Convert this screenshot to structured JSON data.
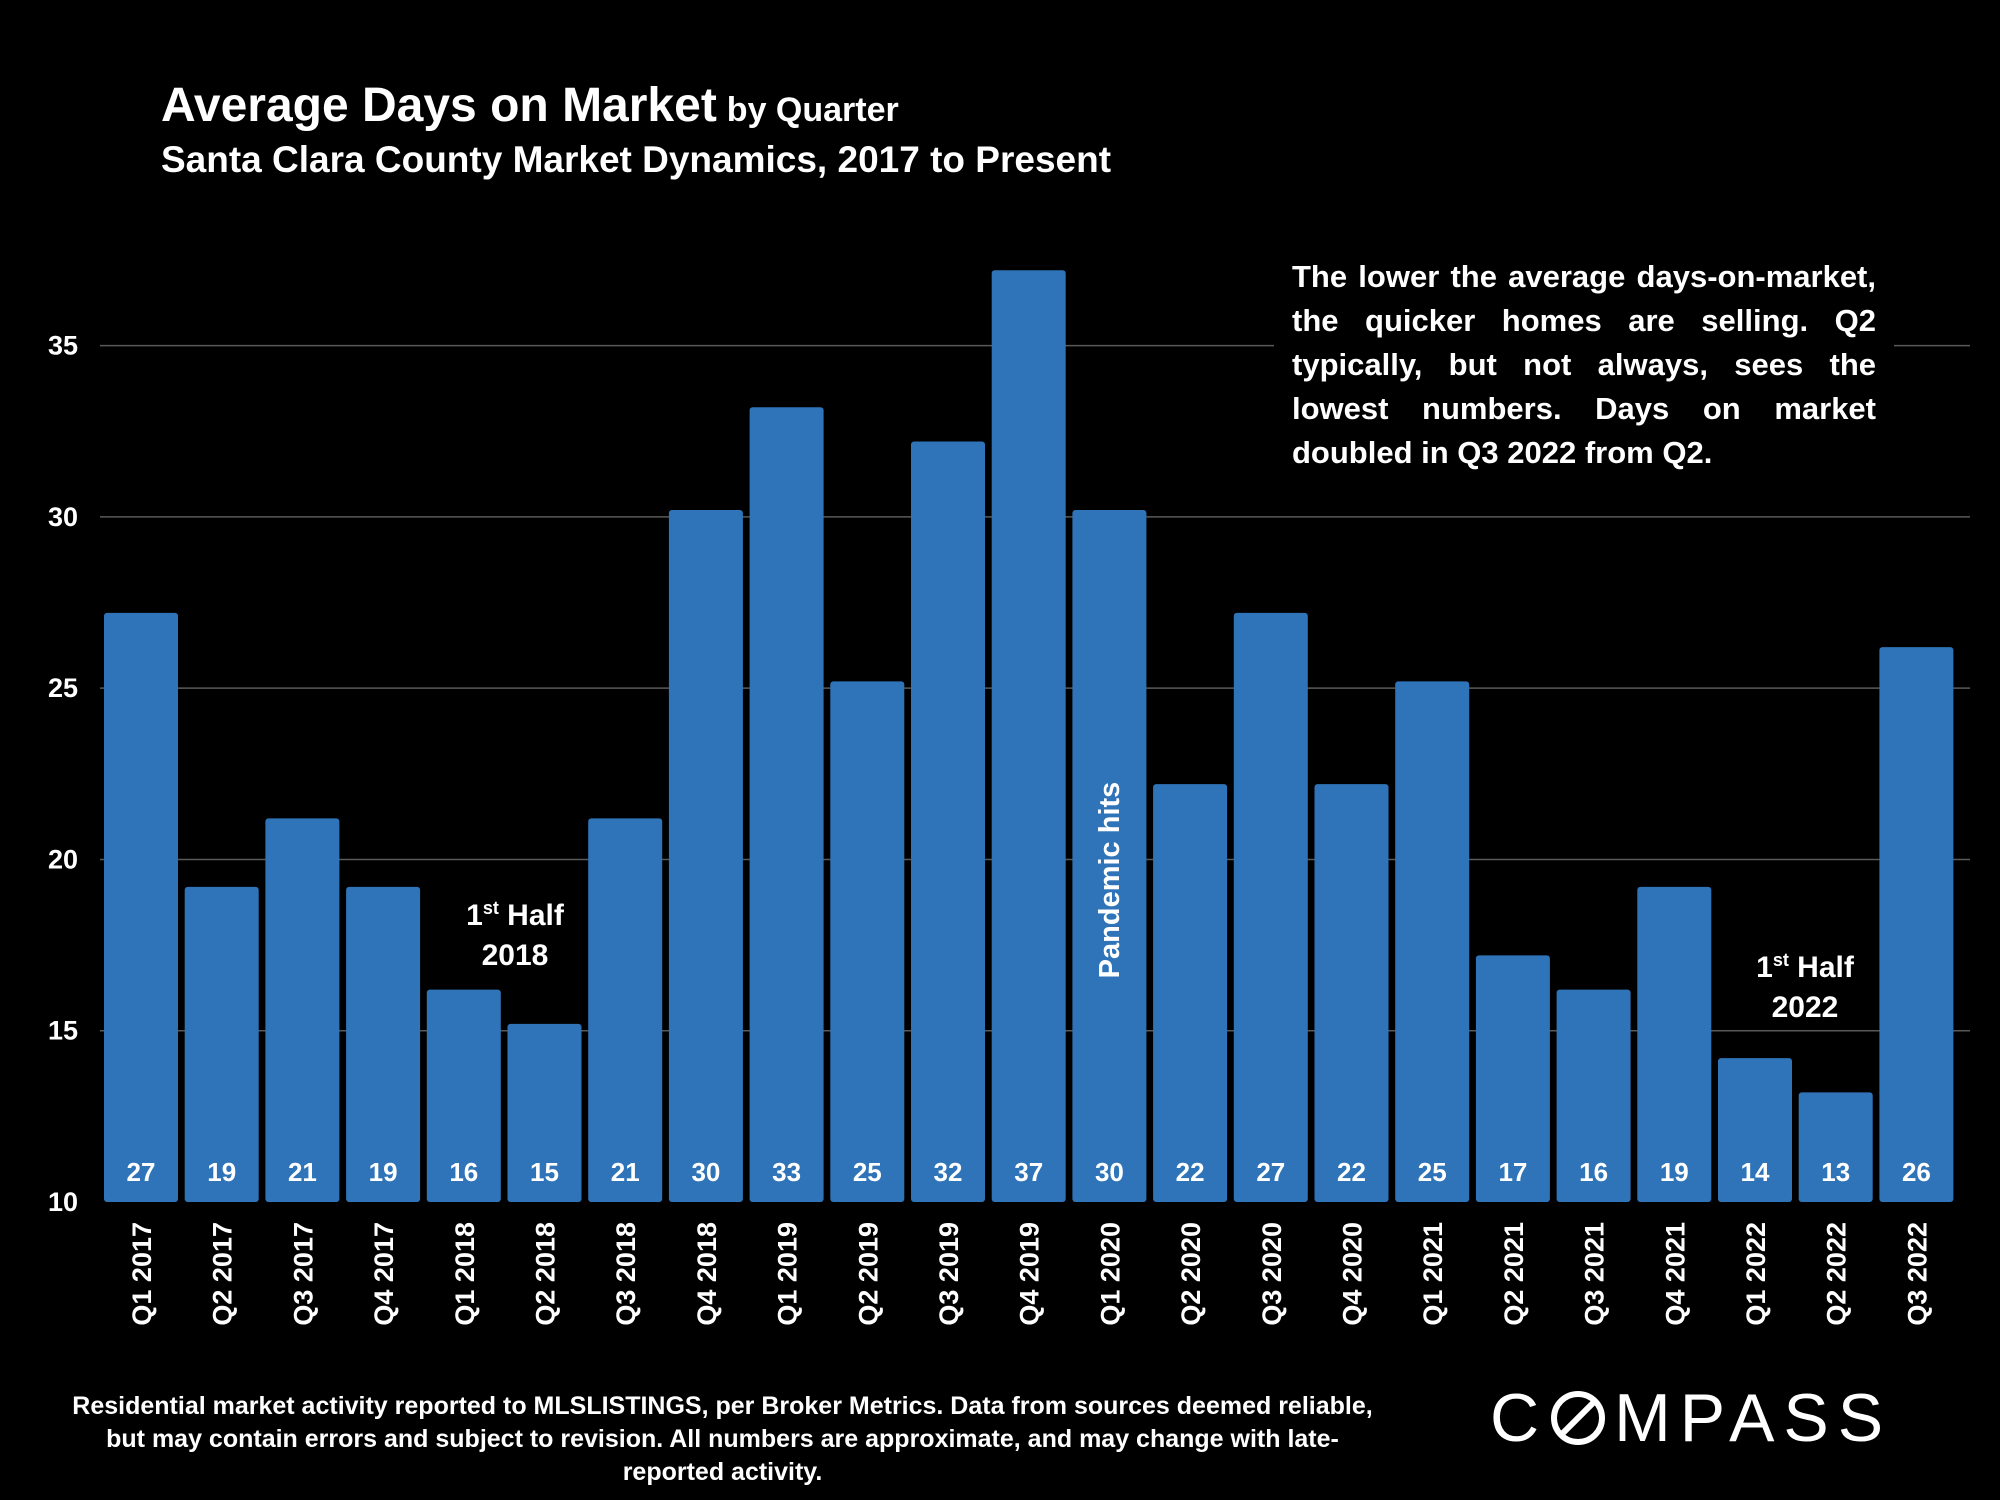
{
  "header": {
    "title": "Average Days on Market",
    "title_suffix": "by Quarter",
    "subtitle": "Santa Clara County Market Dynamics, 2017 to Present"
  },
  "note": "The lower the average days-on-market, the quicker homes are selling. Q2 typically, but not always, sees the lowest numbers. Days on market doubled in Q3 2022 from Q2.",
  "annotations": {
    "half_2018": {
      "ordinal": "1",
      "sup": "st",
      "word": "Half",
      "year": "2018"
    },
    "half_2022": {
      "ordinal": "1",
      "sup": "st",
      "word": "Half",
      "year": "2022"
    },
    "pandemic": "Pandemic hits"
  },
  "footnote": "Residential market activity reported to MLSLISTINGS, per Broker Metrics. Data from sources deemed reliable, but may contain errors and subject to revision. All numbers are approximate, and may change with late-reported activity.",
  "logo": {
    "left": "C",
    "right": "MPASS"
  },
  "colors": {
    "background": "#000000",
    "bar": "#2f74b8",
    "grid": "#595959",
    "text": "#ffffff"
  },
  "chart_data": {
    "type": "bar",
    "title": "Average Days on Market by Quarter",
    "subtitle": "Santa Clara County Market Dynamics, 2017 to Present",
    "categories": [
      "Q1 2017",
      "Q2 2017",
      "Q3 2017",
      "Q4 2017",
      "Q1 2018",
      "Q2 2018",
      "Q3 2018",
      "Q4 2018",
      "Q1 2019",
      "Q2 2019",
      "Q3 2019",
      "Q4 2019",
      "Q1 2020",
      "Q2 2020",
      "Q3 2020",
      "Q4 2020",
      "Q1 2021",
      "Q2 2021",
      "Q3 2021",
      "Q4 2021",
      "Q1 2022",
      "Q2 2022",
      "Q3 2022"
    ],
    "values": [
      27.2,
      19.2,
      21.2,
      19.2,
      16.2,
      15.2,
      21.2,
      30.2,
      33.2,
      25.2,
      32.2,
      37.2,
      30.2,
      22.2,
      27.2,
      22.2,
      25.2,
      17.2,
      16.2,
      19.2,
      14.2,
      13.2,
      26.2
    ],
    "data_labels": [
      "27",
      "19",
      "21",
      "19",
      "16",
      "15",
      "21",
      "30",
      "33",
      "25",
      "32",
      "37",
      "30",
      "22",
      "27",
      "22",
      "25",
      "17",
      "16",
      "19",
      "14",
      "13",
      "26"
    ],
    "ylim": [
      10,
      37.5
    ],
    "yticks": [
      10,
      15,
      20,
      25,
      30,
      35
    ],
    "grid": true,
    "xlabel": "",
    "ylabel": ""
  }
}
